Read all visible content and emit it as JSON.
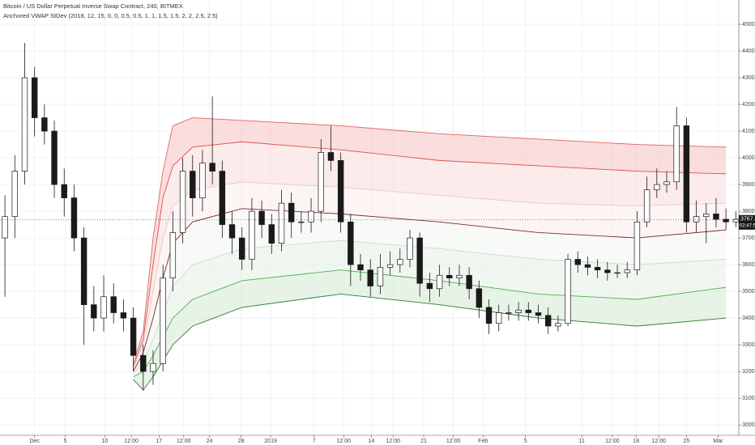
{
  "chart_data": {
    "type": "candlestick",
    "title": "Bitcoin / US Dollar Perpetual Inverse Swap Contract, 240, BITMEX",
    "subtitle": "Anchored VWAP StDev (2018, 12, 15, 0, 0, 0.5, 0.5, 1, 1, 1.5, 1.5, 2, 2, 2.5, 2.5)",
    "up_color": "#ffffff",
    "down_color": "#1a1a1a",
    "wick_color": "#1a1a1a",
    "open": [
      3700,
      3780,
      3950,
      4300,
      4150,
      4100,
      3900,
      3850,
      3700,
      3450,
      3400,
      3480,
      3420,
      3400,
      3260,
      3200,
      3230,
      3550,
      3720,
      3950,
      3850,
      3980,
      3950,
      3750,
      3700,
      3620,
      3800,
      3750,
      3680,
      3830,
      3760,
      3760,
      3800,
      4020,
      3990,
      3760,
      3600,
      3580,
      3520,
      3590,
      3600,
      3620,
      3700,
      3530,
      3510,
      3560,
      3550,
      3560,
      3510,
      3440,
      3380,
      3420,
      3420,
      3430,
      3420,
      3410,
      3370,
      3380,
      3620,
      3600,
      3590,
      3580,
      3570,
      3570,
      3580,
      3760,
      3880,
      3900,
      3910,
      4120,
      3760,
      3780,
      3790,
      3770,
      3760
    ],
    "high": [
      3860,
      4010,
      4430,
      4340,
      4200,
      4140,
      3960,
      3900,
      3740,
      3520,
      3560,
      3530,
      3470,
      3440,
      3300,
      3280,
      3600,
      3800,
      4000,
      4010,
      4030,
      4230,
      3990,
      3800,
      3740,
      3850,
      3840,
      3790,
      3880,
      3870,
      3800,
      3850,
      4070,
      4120,
      4020,
      3790,
      3640,
      3620,
      3640,
      3650,
      3660,
      3730,
      3720,
      3570,
      3600,
      3590,
      3600,
      3590,
      3540,
      3470,
      3450,
      3450,
      3460,
      3460,
      3450,
      3440,
      3410,
      3640,
      3650,
      3630,
      3620,
      3610,
      3600,
      3610,
      3800,
      3930,
      3960,
      3950,
      4190,
      4150,
      3840,
      3830,
      3850,
      3810,
      3800
    ],
    "low": [
      3480,
      3700,
      3900,
      4080,
      4050,
      3850,
      3780,
      3650,
      3300,
      3350,
      3350,
      3380,
      3350,
      3200,
      3130,
      3150,
      3200,
      3500,
      3680,
      3780,
      3800,
      3900,
      3700,
      3640,
      3580,
      3580,
      3700,
      3640,
      3650,
      3700,
      3720,
      3720,
      3760,
      3950,
      3720,
      3520,
      3540,
      3480,
      3490,
      3560,
      3570,
      3590,
      3480,
      3460,
      3480,
      3520,
      3520,
      3470,
      3400,
      3340,
      3350,
      3390,
      3390,
      3390,
      3380,
      3340,
      3350,
      3370,
      3570,
      3560,
      3550,
      3540,
      3550,
      3550,
      3560,
      3740,
      3850,
      3870,
      3880,
      3720,
      3720,
      3680,
      3740,
      3730,
      3740
    ],
    "close": [
      3780,
      3950,
      4300,
      4150,
      4100,
      3900,
      3850,
      3700,
      3450,
      3400,
      3480,
      3420,
      3400,
      3260,
      3200,
      3230,
      3550,
      3720,
      3950,
      3850,
      3980,
      3950,
      3750,
      3700,
      3620,
      3800,
      3750,
      3680,
      3830,
      3760,
      3760,
      3800,
      4020,
      3990,
      3760,
      3600,
      3580,
      3520,
      3590,
      3600,
      3620,
      3700,
      3530,
      3510,
      3560,
      3550,
      3560,
      3510,
      3440,
      3380,
      3420,
      3420,
      3430,
      3420,
      3410,
      3370,
      3380,
      3620,
      3600,
      3590,
      3580,
      3570,
      3570,
      3580,
      3760,
      3880,
      3900,
      3910,
      4120,
      3760,
      3780,
      3790,
      3770,
      3760,
      3770
    ],
    "bands": [
      {
        "color": "#e06666",
        "x": [
          13,
          14,
          15,
          16,
          17,
          19,
          24,
          34,
          44,
          54,
          64,
          73
        ],
        "values": [
          3230,
          3350,
          3700,
          3950,
          4120,
          4150,
          4140,
          4120,
          4090,
          4070,
          4050,
          4040
        ]
      },
      {
        "color": "#d9534f",
        "x": [
          13,
          14,
          15,
          16,
          17,
          19,
          24,
          34,
          44,
          54,
          64,
          73
        ],
        "values": [
          3220,
          3320,
          3600,
          3850,
          3970,
          4040,
          4060,
          4030,
          3990,
          3970,
          3950,
          3940
        ]
      },
      {
        "color": "#e8c8c8",
        "x": [
          13,
          14,
          15,
          16,
          17,
          19,
          24,
          34,
          44,
          54,
          64,
          73
        ],
        "values": [
          3210,
          3300,
          3500,
          3700,
          3820,
          3880,
          3910,
          3890,
          3860,
          3830,
          3820,
          3830
        ]
      },
      {
        "color": "#7a2a2a",
        "x": [
          13,
          14,
          15,
          16,
          17,
          19,
          24,
          34,
          44,
          54,
          64,
          73
        ],
        "values": [
          3200,
          3270,
          3400,
          3550,
          3680,
          3760,
          3810,
          3790,
          3760,
          3720,
          3700,
          3730
        ]
      },
      {
        "color": "#cfd8cf",
        "x": [
          13,
          14,
          15,
          16,
          17,
          19,
          24,
          34,
          44,
          54,
          64,
          73
        ],
        "values": [
          3190,
          3240,
          3320,
          3420,
          3520,
          3600,
          3660,
          3690,
          3660,
          3620,
          3600,
          3620
        ]
      },
      {
        "color": "#4caf50",
        "x": [
          13,
          14,
          15,
          16,
          17,
          19,
          24,
          34,
          44,
          54,
          64,
          73
        ],
        "values": [
          3180,
          3200,
          3260,
          3330,
          3400,
          3470,
          3540,
          3580,
          3540,
          3490,
          3470,
          3515
        ]
      },
      {
        "color": "#2e7d32",
        "x": [
          13,
          14,
          15,
          16,
          17,
          19,
          24,
          34,
          44,
          54,
          64,
          73
        ],
        "values": [
          3170,
          3130,
          3180,
          3240,
          3300,
          3370,
          3440,
          3490,
          3450,
          3400,
          3370,
          3400
        ]
      }
    ],
    "xlim": [
      -0.5,
      74.3
    ],
    "xticks": [
      {
        "value": 3.0,
        "label": "Dec"
      },
      {
        "value": 6.1,
        "label": "5"
      },
      {
        "value": 10.1,
        "label": "10"
      },
      {
        "value": 12.8,
        "label": "12:00"
      },
      {
        "value": 15.6,
        "label": "17"
      },
      {
        "value": 18.1,
        "label": "12:00"
      },
      {
        "value": 20.7,
        "label": "24"
      },
      {
        "value": 23.9,
        "label": "28"
      },
      {
        "value": 26.9,
        "label": "2019"
      },
      {
        "value": 31.3,
        "label": "7"
      },
      {
        "value": 34.3,
        "label": "12:00"
      },
      {
        "value": 37.1,
        "label": "14"
      },
      {
        "value": 39.3,
        "label": "12:00"
      },
      {
        "value": 42.4,
        "label": "21"
      },
      {
        "value": 45.4,
        "label": "12:00"
      },
      {
        "value": 48.4,
        "label": "Feb"
      },
      {
        "value": 52.7,
        "label": "5"
      },
      {
        "value": 58.4,
        "label": "11"
      },
      {
        "value": 61.5,
        "label": "12:00"
      },
      {
        "value": 63.9,
        "label": "18"
      },
      {
        "value": 66.2,
        "label": "12:00"
      },
      {
        "value": 69.0,
        "label": "25"
      },
      {
        "value": 72.2,
        "label": "Mar"
      }
    ],
    "ylim": [
      2961,
      4591
    ],
    "yticks": [
      {
        "value": 3000,
        "label": "3000.0"
      },
      {
        "value": 3100,
        "label": "3100.0"
      },
      {
        "value": 3200,
        "label": "3200.0"
      },
      {
        "value": 3300,
        "label": "3300.0"
      },
      {
        "value": 3400,
        "label": "3400.0"
      },
      {
        "value": 3500,
        "label": "3500.0"
      },
      {
        "value": 3600,
        "label": "3600.0"
      },
      {
        "value": 3700,
        "label": "3700.0"
      },
      {
        "value": 3800,
        "label": "3800.0"
      },
      {
        "value": 3900,
        "label": "3900.0"
      },
      {
        "value": 4000,
        "label": "4000.0"
      },
      {
        "value": 4100,
        "label": "4100.0"
      },
      {
        "value": 4200,
        "label": "4200.0"
      },
      {
        "value": 4300,
        "label": "4300.0"
      },
      {
        "value": 4400,
        "label": "4400.0"
      },
      {
        "value": 4500,
        "label": "4500.0"
      }
    ],
    "grid": true,
    "last_price": 3767.5,
    "countdown": "02:47:50"
  }
}
